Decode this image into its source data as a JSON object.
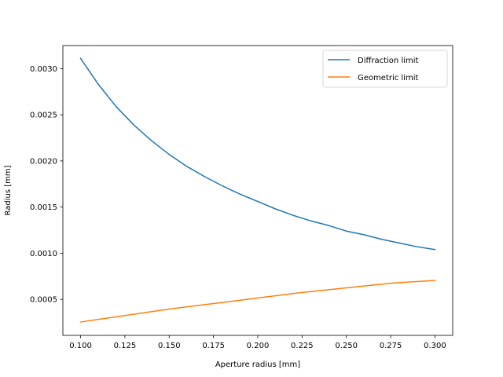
{
  "chart_data": {
    "type": "line",
    "title": "",
    "xlabel": "Aperture radius [mm]",
    "ylabel": "Radius [mm]",
    "xlim": [
      0.09,
      0.31
    ],
    "ylim": [
      0.00011,
      0.00325
    ],
    "xticks": [
      0.1,
      0.125,
      0.15,
      0.175,
      0.2,
      0.225,
      0.25,
      0.275,
      0.3
    ],
    "xtick_labels": [
      "0.100",
      "0.125",
      "0.150",
      "0.175",
      "0.200",
      "0.225",
      "0.250",
      "0.275",
      "0.300"
    ],
    "yticks": [
      0.0005,
      0.001,
      0.0015,
      0.002,
      0.0025,
      0.003
    ],
    "ytick_labels": [
      "0.0005",
      "0.0010",
      "0.0015",
      "0.0020",
      "0.0025",
      "0.0030"
    ],
    "grid": false,
    "legend_position": "top-right",
    "series": [
      {
        "name": "Diffraction limit",
        "color": "#1f77b4",
        "x": [
          0.1,
          0.11,
          0.12,
          0.13,
          0.14,
          0.15,
          0.16,
          0.17,
          0.18,
          0.19,
          0.2,
          0.21,
          0.22,
          0.23,
          0.24,
          0.25,
          0.26,
          0.27,
          0.28,
          0.29,
          0.3
        ],
        "y": [
          0.00311,
          0.00283,
          0.00259,
          0.00239,
          0.00222,
          0.00207,
          0.00194,
          0.00183,
          0.00173,
          0.00164,
          0.00156,
          0.00148,
          0.00141,
          0.00135,
          0.0013,
          0.00124,
          0.0012,
          0.00115,
          0.00111,
          0.00107,
          0.00104
        ]
      },
      {
        "name": "Geometric limit",
        "color": "#ff7f0e",
        "x": [
          0.1,
          0.125,
          0.15,
          0.175,
          0.2,
          0.225,
          0.25,
          0.275,
          0.3
        ],
        "y": [
          0.000255,
          0.000325,
          0.000395,
          0.000455,
          0.000515,
          0.000575,
          0.000625,
          0.000675,
          0.000705
        ]
      }
    ]
  }
}
